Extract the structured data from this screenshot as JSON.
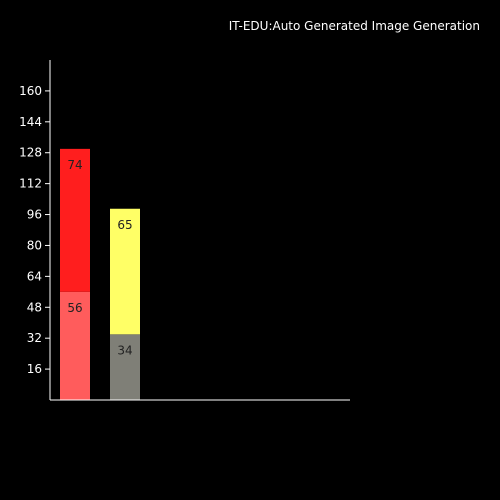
{
  "chart_data": {
    "type": "bar",
    "stacked": true,
    "title": "IT-EDU:Auto Generated Image Generation",
    "xlabel": "",
    "ylabel": "",
    "ylim": [
      0,
      176
    ],
    "yticks": [
      16,
      32,
      48,
      64,
      80,
      96,
      112,
      128,
      144,
      160
    ],
    "grid": false,
    "legend": "none",
    "categories": [
      "",
      ""
    ],
    "bars": [
      {
        "segments": [
          {
            "value": 56,
            "color": "#ff5c5c"
          },
          {
            "value": 74,
            "color": "#ff1e1e"
          }
        ]
      },
      {
        "segments": [
          {
            "value": 34,
            "color": "#7f7f77"
          },
          {
            "value": 65,
            "color": "#ffff66"
          }
        ]
      }
    ],
    "colors": {
      "background": "#000000",
      "axis": "#ffffff",
      "text": "#ffffff",
      "bar_label": "#222222"
    }
  }
}
